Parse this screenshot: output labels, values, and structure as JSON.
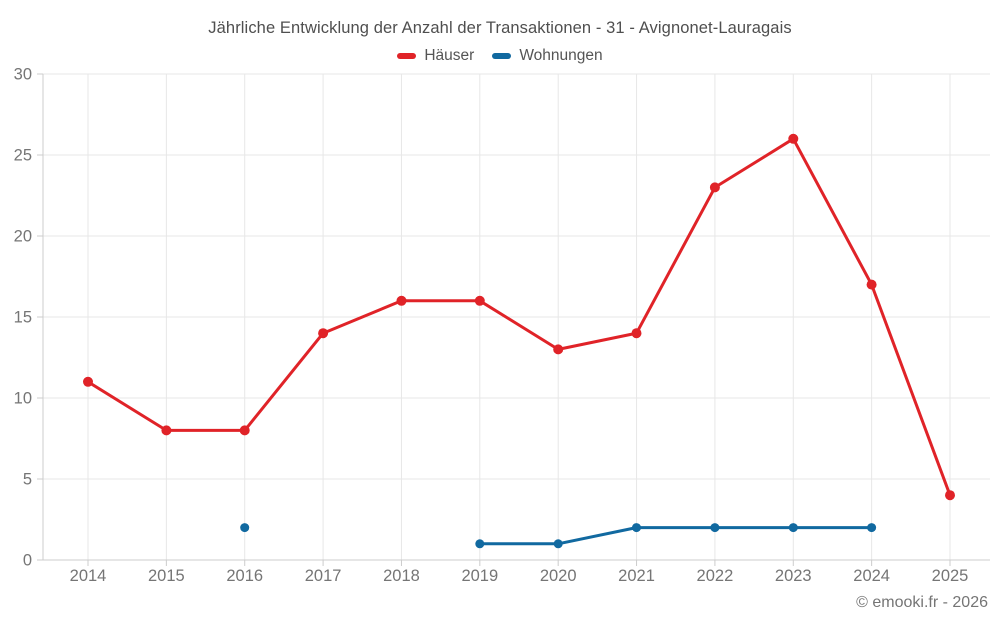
{
  "title": "Jährliche Entwicklung der Anzahl der Transaktionen - 31 - Avignonet-Lauragais",
  "footer": "© emooki.fr - 2026",
  "colors": {
    "haeuser_red": "#e02328",
    "wohnungen_blue": "#1169a0",
    "grid": "#e7e7e7",
    "axis": "#cccccc",
    "tick_label": "#757575",
    "title_text": "#4f4f4f",
    "legend_text": "#555555",
    "background": "#ffffff"
  },
  "chart_data": {
    "type": "line",
    "title": "Jährliche Entwicklung der Anzahl der Transaktionen - 31 - Avignonet-Lauragais",
    "categories": [
      "2014",
      "2015",
      "2016",
      "2017",
      "2018",
      "2019",
      "2020",
      "2021",
      "2022",
      "2023",
      "2024",
      "2025"
    ],
    "series": [
      {
        "name": "Häuser",
        "color": "#e02328",
        "values": [
          11,
          8,
          8,
          14,
          16,
          16,
          13,
          14,
          23,
          26,
          17,
          4
        ]
      },
      {
        "name": "Wohnungen",
        "color": "#1169a0",
        "values": [
          null,
          null,
          2,
          null,
          null,
          1,
          1,
          2,
          2,
          2,
          2,
          null
        ]
      }
    ],
    "xlabel": "",
    "ylabel": "",
    "ylim": [
      0,
      30
    ],
    "yticks": [
      0,
      5,
      10,
      15,
      20,
      25,
      30
    ],
    "grid": true,
    "legend_position": "top",
    "legend": [
      "Häuser",
      "Wohnungen"
    ]
  }
}
